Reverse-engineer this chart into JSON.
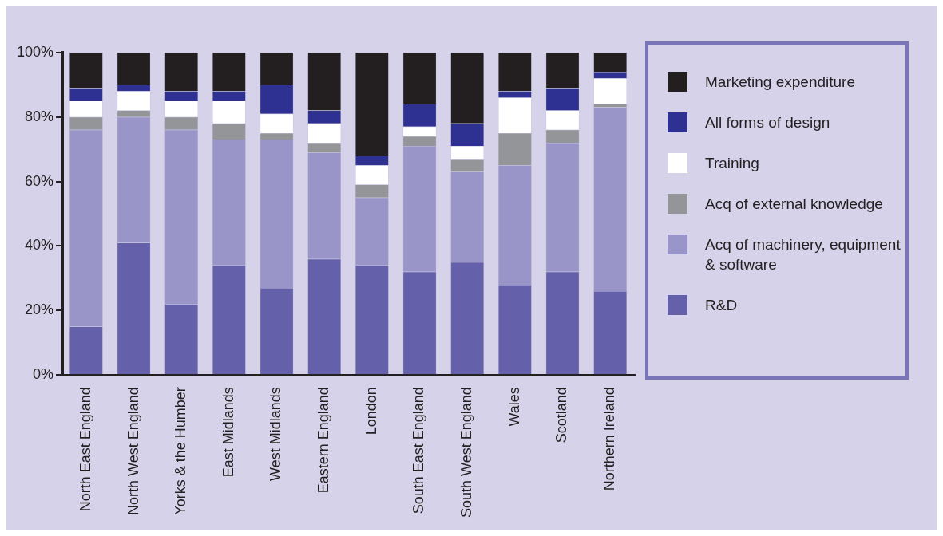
{
  "chart_data": {
    "type": "bar",
    "stacked": true,
    "grid": false,
    "legend": "right",
    "categories": [
      "North East England",
      "North West England",
      "Yorks & the Humber",
      "East Midlands",
      "West Midlands",
      "Eastern England",
      "London",
      "South East England",
      "South West England",
      "Wales",
      "Scotland",
      "Northern Ireland"
    ],
    "ylim": [
      0,
      100
    ],
    "yticks": [
      {
        "value": 0,
        "label": "0%"
      },
      {
        "value": 20,
        "label": "20%"
      },
      {
        "value": 40,
        "label": "40%"
      },
      {
        "value": 60,
        "label": "60%"
      },
      {
        "value": 80,
        "label": "80%"
      },
      {
        "value": 100,
        "label": "100%"
      }
    ],
    "series": [
      {
        "name": "R&D",
        "color": "#6560aa",
        "values": [
          15,
          41,
          22,
          34,
          27,
          36,
          34,
          32,
          35,
          28,
          32,
          26
        ]
      },
      {
        "name": "Acq of machinery, equipment & software",
        "color": "#9a95c8",
        "values": [
          61,
          39,
          54,
          39,
          46,
          33,
          21,
          39,
          28,
          37,
          40,
          57
        ]
      },
      {
        "name": "Acq of external knowledge",
        "color": "#939598",
        "values": [
          4,
          2,
          4,
          5,
          2,
          3,
          4,
          3,
          4,
          10,
          4,
          1
        ]
      },
      {
        "name": "Training",
        "color": "#ffffff",
        "values": [
          5,
          6,
          5,
          7,
          6,
          6,
          6,
          3,
          4,
          11,
          6,
          8
        ]
      },
      {
        "name": "All forms of design",
        "color": "#2e3192",
        "values": [
          4,
          2,
          3,
          3,
          9,
          4,
          3,
          7,
          7,
          2,
          7,
          2
        ]
      },
      {
        "name": "Marketing expenditure",
        "color": "#231f20",
        "values": [
          11,
          10,
          12,
          12,
          10,
          18,
          32,
          16,
          22,
          12,
          11,
          6
        ]
      }
    ]
  }
}
